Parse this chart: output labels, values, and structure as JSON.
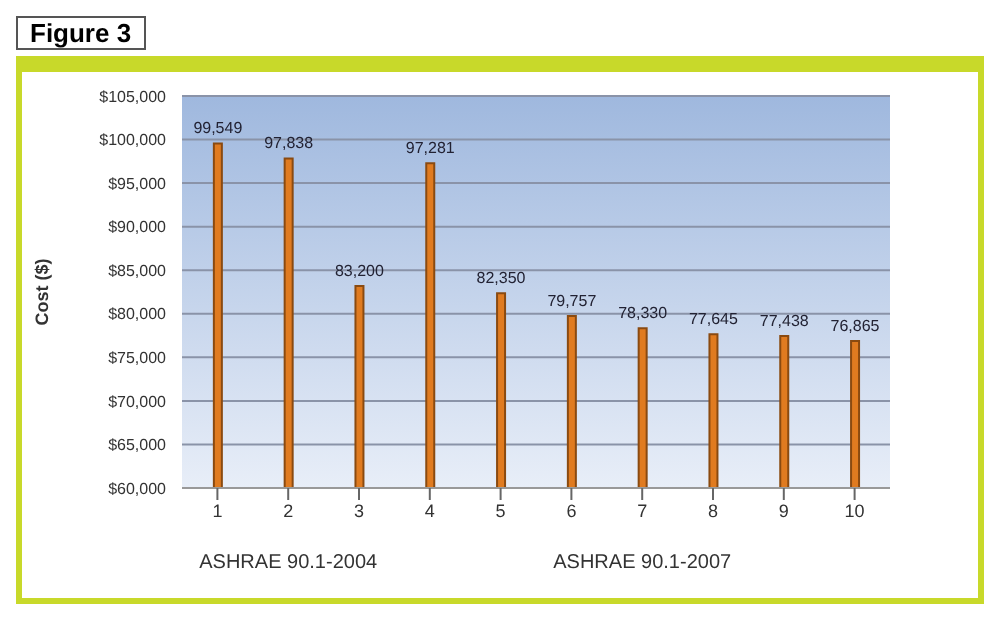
{
  "chart_data": {
    "type": "bar",
    "title": "Figure 3",
    "ylabel": "Cost ($)",
    "categories": [
      "1",
      "2",
      "3",
      "4",
      "5",
      "6",
      "7",
      "8",
      "9",
      "10"
    ],
    "values": [
      99549,
      97838,
      83200,
      97281,
      82350,
      79757,
      78330,
      77645,
      77438,
      76865
    ],
    "value_labels": [
      "99,549",
      "97,838",
      "83,200",
      "97,281",
      "82,350",
      "79,757",
      "78,330",
      "77,645",
      "77,438",
      "76,865"
    ],
    "color": "#e07b20",
    "ylim": [
      60000,
      105000
    ],
    "yticks": [
      {
        "value": 60000,
        "label": "$60,000"
      },
      {
        "value": 65000,
        "label": "$65,000"
      },
      {
        "value": 70000,
        "label": "$70,000"
      },
      {
        "value": 75000,
        "label": "$75,000"
      },
      {
        "value": 80000,
        "label": "$80,000"
      },
      {
        "value": 85000,
        "label": "$85,000"
      },
      {
        "value": 90000,
        "label": "$90,000"
      },
      {
        "value": 95000,
        "label": "$95,000"
      },
      {
        "value": 100000,
        "label": "$100,000"
      },
      {
        "value": 105000,
        "label": "$105,000"
      }
    ],
    "grid": "y",
    "annotations": [
      "ASHRAE 90.1-2004",
      "ASHRAE 90.1-2007"
    ]
  }
}
